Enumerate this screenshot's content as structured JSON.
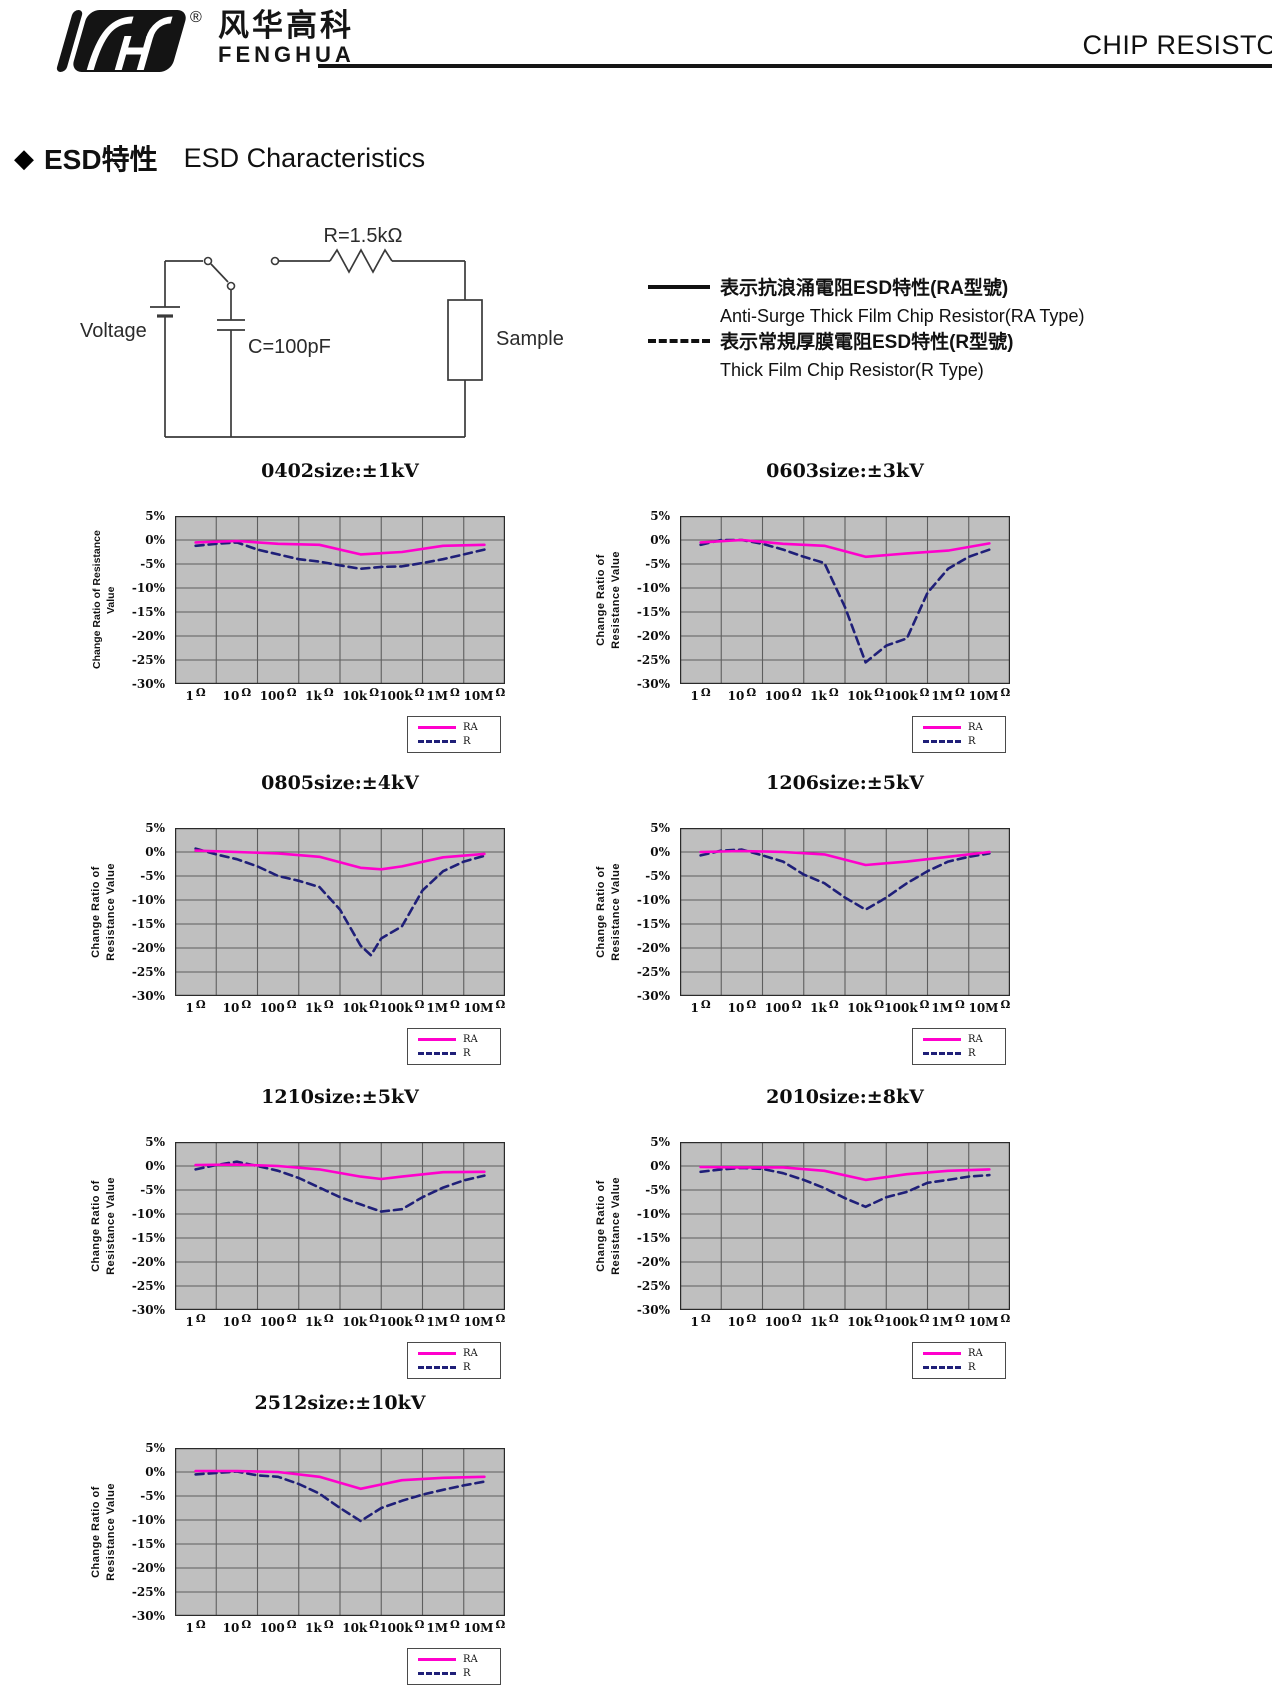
{
  "header": {
    "logo_cn": "风华高科",
    "logo_en": "FENGHUA",
    "reg_mark": "®",
    "doc_title": "CHIP RESISTO"
  },
  "section_title": {
    "bullet": "◆",
    "cn": "ESD特性",
    "en": "ESD Characteristics"
  },
  "circuit": {
    "resistor": "R=1.5kΩ",
    "capacitor": "C=100pF",
    "voltage": "Voltage",
    "sample": "Sample"
  },
  "type_legend": {
    "solid_cn": "表示抗浪涌電阻ESD特性(RA型號)",
    "solid_en": "Anti-Surge Thick Film Chip Resistor(RA Type)",
    "dashed_cn": "表示常規厚膜電阻ESD特性(R型號)",
    "dashed_en": "Thick Film Chip Resistor(R Type)"
  },
  "axes": {
    "ylabel_line1": "Change Ratio of",
    "ylabel_line2": "Resistance Value",
    "ylabel_single": "Change Ratio of  Resistance Value",
    "y_ticks": [
      "5%",
      "0%",
      "-5%",
      "-10%",
      "-15%",
      "-20%",
      "-25%",
      "-30%"
    ],
    "x_ticks": [
      "1Ω",
      "10Ω",
      "100Ω",
      "1kΩ",
      "10kΩ",
      "100kΩ",
      "1MΩ",
      "10MΩ"
    ],
    "ylim": [
      5,
      -30
    ],
    "grid": true
  },
  "series_legend": {
    "ra": "RA",
    "r": "R"
  },
  "colors": {
    "ra_line": "#ff00cc",
    "r_line": "#1f1f78",
    "plot_bg": "#bfbfbf",
    "grid_line": "#5e5e5e",
    "plot_border": "#2a2a2a"
  },
  "chart_data": [
    {
      "type": "line",
      "title": "0402size:±1kV",
      "size": "0402",
      "esd_rating": "±1kV",
      "ylabel_style": "single",
      "ylim": [
        5,
        -30
      ],
      "categories": [
        "1Ω",
        "10Ω",
        "100Ω",
        "1kΩ",
        "10kΩ",
        "100kΩ",
        "1MΩ",
        "10MΩ"
      ],
      "series": [
        {
          "name": "RA",
          "points": [
            [
              0,
              -0.5
            ],
            [
              1,
              -0.2
            ],
            [
              2,
              -0.8
            ],
            [
              3,
              -1
            ],
            [
              4,
              -3
            ],
            [
              5,
              -2.5
            ],
            [
              6,
              -1.2
            ],
            [
              7,
              -1
            ]
          ]
        },
        {
          "name": "R",
          "points": [
            [
              0,
              -1.2
            ],
            [
              0.5,
              -0.8
            ],
            [
              1,
              -0.5
            ],
            [
              1.5,
              -2
            ],
            [
              2,
              -3
            ],
            [
              2.5,
              -4
            ],
            [
              3,
              -4.5
            ],
            [
              3.5,
              -5.3
            ],
            [
              4,
              -6
            ],
            [
              4.5,
              -5.6
            ],
            [
              5,
              -5.5
            ],
            [
              5.5,
              -4.8
            ],
            [
              6,
              -4
            ],
            [
              6.5,
              -3
            ],
            [
              7,
              -2
            ]
          ]
        }
      ]
    },
    {
      "type": "line",
      "title": "0603size:±3kV",
      "size": "0603",
      "esd_rating": "±3kV",
      "ylabel_style": "double",
      "ylim": [
        5,
        -30
      ],
      "categories": [
        "1Ω",
        "10Ω",
        "100Ω",
        "1kΩ",
        "10kΩ",
        "100kΩ",
        "1MΩ",
        "10MΩ"
      ],
      "series": [
        {
          "name": "RA",
          "points": [
            [
              0,
              -0.5
            ],
            [
              1,
              0
            ],
            [
              2,
              -0.8
            ],
            [
              3,
              -1.2
            ],
            [
              4,
              -3.5
            ],
            [
              5,
              -2.8
            ],
            [
              6,
              -2.2
            ],
            [
              7,
              -0.7
            ]
          ]
        },
        {
          "name": "R",
          "points": [
            [
              0,
              -1
            ],
            [
              0.5,
              0
            ],
            [
              1,
              0
            ],
            [
              1.5,
              -0.8
            ],
            [
              2,
              -2
            ],
            [
              2.5,
              -3.5
            ],
            [
              3,
              -4.8
            ],
            [
              3.5,
              -14
            ],
            [
              4,
              -25.5
            ],
            [
              4.5,
              -22
            ],
            [
              5,
              -20.5
            ],
            [
              5.5,
              -11
            ],
            [
              6,
              -6
            ],
            [
              6.5,
              -3.5
            ],
            [
              7,
              -2
            ]
          ]
        }
      ]
    },
    {
      "type": "line",
      "title": "0805size:±4kV",
      "size": "0805",
      "esd_rating": "±4kV",
      "ylabel_style": "double",
      "ylim": [
        5,
        -30
      ],
      "categories": [
        "1Ω",
        "10Ω",
        "100Ω",
        "1kΩ",
        "10kΩ",
        "100kΩ",
        "1MΩ",
        "10MΩ"
      ],
      "series": [
        {
          "name": "RA",
          "points": [
            [
              0,
              0.3
            ],
            [
              1,
              0
            ],
            [
              2,
              -0.3
            ],
            [
              3,
              -1
            ],
            [
              4,
              -3.3
            ],
            [
              4.5,
              -3.6
            ],
            [
              5,
              -3
            ],
            [
              6,
              -1.1
            ],
            [
              7,
              -0.4
            ]
          ]
        },
        {
          "name": "R",
          "points": [
            [
              0,
              0.7
            ],
            [
              0.5,
              -0.5
            ],
            [
              1,
              -1.5
            ],
            [
              1.5,
              -3
            ],
            [
              2,
              -5
            ],
            [
              2.5,
              -6
            ],
            [
              3,
              -7.3
            ],
            [
              3.5,
              -12
            ],
            [
              4,
              -19.5
            ],
            [
              4.25,
              -21.5
            ],
            [
              4.5,
              -18
            ],
            [
              5,
              -15.5
            ],
            [
              5.5,
              -8
            ],
            [
              6,
              -4
            ],
            [
              6.5,
              -2
            ],
            [
              7,
              -0.8
            ]
          ]
        }
      ]
    },
    {
      "type": "line",
      "title": "1206size:±5kV",
      "size": "1206",
      "esd_rating": "±5kV",
      "ylabel_style": "double",
      "ylim": [
        5,
        -30
      ],
      "categories": [
        "1Ω",
        "10Ω",
        "100Ω",
        "1kΩ",
        "10kΩ",
        "100kΩ",
        "1MΩ",
        "10MΩ"
      ],
      "series": [
        {
          "name": "RA",
          "points": [
            [
              0,
              0
            ],
            [
              1,
              0.2
            ],
            [
              2,
              0
            ],
            [
              3,
              -0.5
            ],
            [
              4,
              -2.7
            ],
            [
              5,
              -2
            ],
            [
              6,
              -1
            ],
            [
              7,
              0
            ]
          ]
        },
        {
          "name": "R",
          "points": [
            [
              0,
              -0.7
            ],
            [
              0.5,
              0.3
            ],
            [
              1,
              0.5
            ],
            [
              1.5,
              -0.7
            ],
            [
              2,
              -2
            ],
            [
              2.5,
              -4.7
            ],
            [
              3,
              -6.5
            ],
            [
              3.5,
              -9.5
            ],
            [
              4,
              -12
            ],
            [
              4.5,
              -9.5
            ],
            [
              5,
              -6.5
            ],
            [
              5.5,
              -4
            ],
            [
              6,
              -2
            ],
            [
              6.5,
              -1
            ],
            [
              7,
              -0.3
            ]
          ]
        }
      ]
    },
    {
      "type": "line",
      "title": "1210size:±5kV",
      "size": "1210",
      "esd_rating": "±5kV",
      "ylabel_style": "double",
      "ylim": [
        5,
        -30
      ],
      "categories": [
        "1Ω",
        "10Ω",
        "100Ω",
        "1kΩ",
        "10kΩ",
        "100kΩ",
        "1MΩ",
        "10MΩ"
      ],
      "series": [
        {
          "name": "RA",
          "points": [
            [
              0,
              0.2
            ],
            [
              1,
              0.3
            ],
            [
              2,
              0
            ],
            [
              3,
              -0.7
            ],
            [
              4,
              -2.2
            ],
            [
              4.5,
              -2.7
            ],
            [
              5,
              -2.2
            ],
            [
              6,
              -1.3
            ],
            [
              7,
              -1.2
            ]
          ]
        },
        {
          "name": "R",
          "points": [
            [
              0,
              -0.7
            ],
            [
              0.5,
              0.2
            ],
            [
              1,
              0.9
            ],
            [
              1.5,
              0
            ],
            [
              2,
              -1
            ],
            [
              2.5,
              -2.5
            ],
            [
              3,
              -4.5
            ],
            [
              3.5,
              -6.5
            ],
            [
              4,
              -8
            ],
            [
              4.5,
              -9.5
            ],
            [
              5,
              -9
            ],
            [
              5.5,
              -6.5
            ],
            [
              6,
              -4.5
            ],
            [
              6.5,
              -3
            ],
            [
              7,
              -2
            ]
          ]
        }
      ]
    },
    {
      "type": "line",
      "title": "2010size:±8kV",
      "size": "2010",
      "esd_rating": "±8kV",
      "ylabel_style": "double",
      "ylim": [
        5,
        -30
      ],
      "categories": [
        "1Ω",
        "10Ω",
        "100Ω",
        "1kΩ",
        "10kΩ",
        "100kΩ",
        "1MΩ",
        "10MΩ"
      ],
      "series": [
        {
          "name": "RA",
          "points": [
            [
              0,
              -0.2
            ],
            [
              1,
              -0.3
            ],
            [
              2,
              -0.3
            ],
            [
              3,
              -1
            ],
            [
              4,
              -2.9
            ],
            [
              5,
              -1.7
            ],
            [
              6,
              -1
            ],
            [
              7,
              -0.7
            ]
          ]
        },
        {
          "name": "R",
          "points": [
            [
              0,
              -1.2
            ],
            [
              0.5,
              -0.7
            ],
            [
              1,
              -0.4
            ],
            [
              1.5,
              -0.6
            ],
            [
              2,
              -1.5
            ],
            [
              2.5,
              -2.9
            ],
            [
              3,
              -4.6
            ],
            [
              3.5,
              -6.7
            ],
            [
              4,
              -8.5
            ],
            [
              4.5,
              -6.5
            ],
            [
              5,
              -5.4
            ],
            [
              5.5,
              -3.5
            ],
            [
              6,
              -2.9
            ],
            [
              6.5,
              -2.2
            ],
            [
              7,
              -1.9
            ]
          ]
        }
      ]
    },
    {
      "type": "line",
      "title": "2512size:±10kV",
      "size": "2512",
      "esd_rating": "±10kV",
      "ylabel_style": "double",
      "ylim": [
        5,
        -30
      ],
      "categories": [
        "1Ω",
        "10Ω",
        "100Ω",
        "1kΩ",
        "10kΩ",
        "100kΩ",
        "1MΩ",
        "10MΩ"
      ],
      "series": [
        {
          "name": "RA",
          "points": [
            [
              0,
              0.2
            ],
            [
              1,
              0.2
            ],
            [
              2,
              0
            ],
            [
              3,
              -1
            ],
            [
              4,
              -3.5
            ],
            [
              5,
              -1.7
            ],
            [
              6,
              -1.2
            ],
            [
              7,
              -1
            ]
          ]
        },
        {
          "name": "R",
          "points": [
            [
              0,
              -0.5
            ],
            [
              0.5,
              -0.2
            ],
            [
              1,
              0.1
            ],
            [
              1.5,
              -0.7
            ],
            [
              2,
              -1
            ],
            [
              2.5,
              -2.5
            ],
            [
              3,
              -4.5
            ],
            [
              3.5,
              -7.5
            ],
            [
              4,
              -10.2
            ],
            [
              4.5,
              -7.5
            ],
            [
              5,
              -6
            ],
            [
              5.5,
              -4.7
            ],
            [
              6,
              -3.7
            ],
            [
              6.5,
              -2.8
            ],
            [
              7,
              -2
            ]
          ]
        }
      ]
    }
  ]
}
